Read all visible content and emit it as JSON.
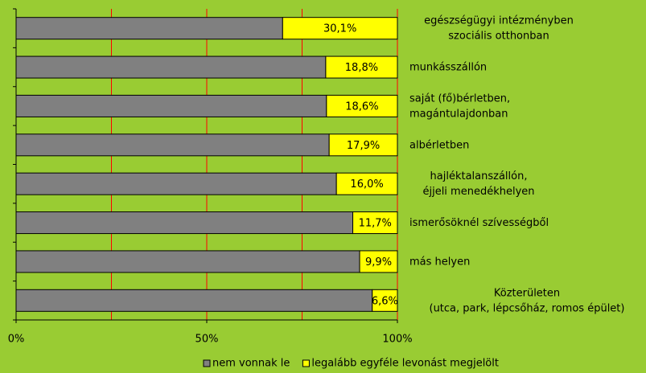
{
  "chart_data": {
    "type": "stacked-barh",
    "categories": [
      [
        "egészségügyi intézményben",
        "szociális otthonban"
      ],
      [
        "munkásszállón"
      ],
      [
        "saját (fő)bérletben,",
        "magántulajdonban"
      ],
      [
        "albérletben"
      ],
      [
        "hajléktalanszállón,",
        "éjjeli menedékhelyen"
      ],
      [
        "ismerősöknél szívességből"
      ],
      [
        "más helyen"
      ],
      [
        "Közterületen",
        "(utca, park, lépcsőház, romos épület)"
      ]
    ],
    "series": [
      {
        "name": "nem vonnak le",
        "color": "#808080",
        "values": [
          69.9,
          81.2,
          81.4,
          82.1,
          84.0,
          88.3,
          90.1,
          93.4
        ]
      },
      {
        "name": "legalább egyféle levonást megjelölt",
        "color": "#ffff00",
        "values": [
          30.1,
          18.8,
          18.6,
          17.9,
          16.0,
          11.7,
          9.9,
          6.6
        ],
        "value_labels": [
          "30,1%",
          "18,8%",
          "18,6%",
          "17,9%",
          "16,0%",
          "11,7%",
          "9,9%",
          "6,6%"
        ]
      }
    ],
    "xlim": [
      0,
      100
    ],
    "xticks": [
      {
        "value": 0,
        "label": "0%"
      },
      {
        "value": 50,
        "label": "50%"
      },
      {
        "value": 100,
        "label": "100%"
      }
    ],
    "xminorticks": [
      25,
      75
    ],
    "grid": true,
    "grid_color": "#ff0000",
    "legend": "bottom"
  }
}
